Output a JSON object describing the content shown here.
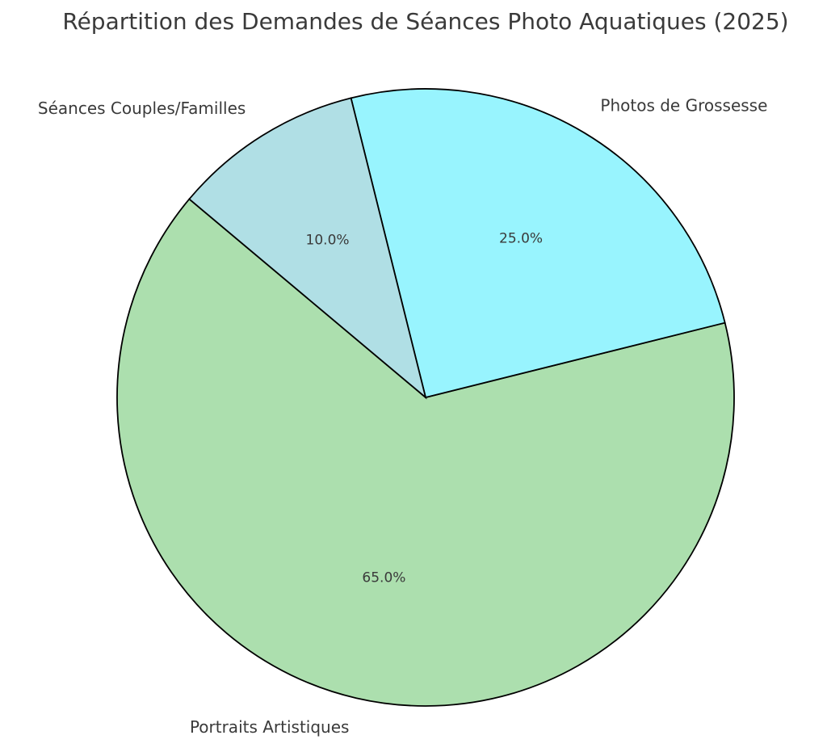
{
  "chart_data": {
    "type": "pie",
    "title": "Répartition des Demandes de Séances Photo Aquatiques (2025)",
    "categories": [
      "Portraits Artistiques",
      "Photos de Grossesse",
      "Séances Couples/Familles"
    ],
    "values": [
      65,
      25,
      10
    ],
    "value_labels": [
      "65.0%",
      "25.0%",
      "10.0%"
    ],
    "colors": [
      "#acdfae",
      "#98f4fe",
      "#b0dfe5"
    ],
    "start_angle": 140
  }
}
